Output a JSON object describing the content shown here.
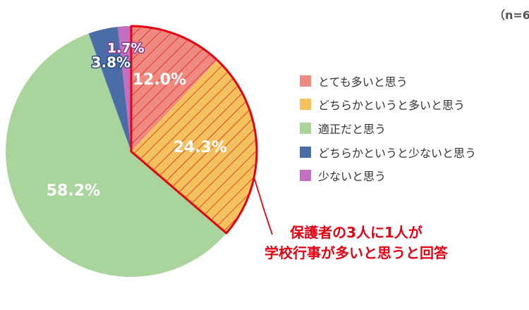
{
  "sample_note": "（n=6",
  "callout": {
    "line1": "保護者の3人に1人が",
    "line2": "学校行事が多いと思うと回答",
    "color": "#e60012"
  },
  "chart_data": {
    "type": "pie",
    "slices": [
      {
        "name": "とても多いと思う",
        "value": 12.0,
        "label": "12.0%",
        "color": "#ee8a80",
        "highlighted": true
      },
      {
        "name": "どちらかというと多いと思う",
        "value": 24.3,
        "label": "24.3%",
        "color": "#f3c25c",
        "highlighted": true
      },
      {
        "name": "適正だと思う",
        "value": 58.2,
        "label": "58.2%",
        "color": "#a9d59d",
        "highlighted": false
      },
      {
        "name": "どちらかというと少ないと思う",
        "value": 3.8,
        "label": "3.8%",
        "color": "#4a6da8",
        "highlighted": false
      },
      {
        "name": "少ないと思う",
        "value": 1.7,
        "label": "1.7%",
        "color": "#c46fc1",
        "highlighted": false
      }
    ],
    "start": "12 o'clock",
    "direction": "clockwise",
    "highlight_color": "#e60012",
    "legend_position": "right"
  }
}
